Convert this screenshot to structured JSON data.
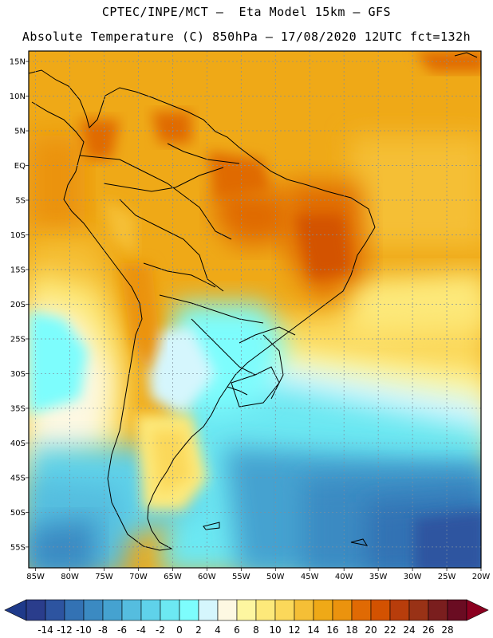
{
  "header": {
    "line1": "CPTEC/INPE/MCT –  Eta Model 15km – GFS",
    "line2": "Absolute Temperature (C) 850hPa – 17/08/2020 12UTC fct=132h"
  },
  "map": {
    "lat_labels": [
      "15N",
      "10N",
      "5N",
      "EQ",
      "5S",
      "10S",
      "15S",
      "20S",
      "25S",
      "30S",
      "35S",
      "40S",
      "45S",
      "50S",
      "55S"
    ],
    "lon_labels": [
      "85W",
      "80W",
      "75W",
      "70W",
      "65W",
      "60W",
      "55W",
      "50W",
      "45W",
      "40W",
      "35W",
      "30W",
      "25W",
      "20W"
    ],
    "lon_range": [
      -86,
      -20
    ],
    "lat_range": [
      -58,
      16.5
    ]
  },
  "colorbar": {
    "labels": [
      "-14",
      "-12",
      "-10",
      "-8",
      "-6",
      "-4",
      "-2",
      "0",
      "2",
      "4",
      "6",
      "8",
      "10",
      "12",
      "14",
      "16",
      "18",
      "20",
      "22",
      "24",
      "26",
      "28"
    ],
    "colors": [
      "#2a3d8c",
      "#2d54a0",
      "#3372b4",
      "#3b8ac2",
      "#45a2d0",
      "#55bddf",
      "#5fd2ea",
      "#6ce8f2",
      "#7dfdfd",
      "#d5f6fd",
      "#fdf8e2",
      "#fdf6a0",
      "#fde97a",
      "#fbd85a",
      "#f5bf36",
      "#efa917",
      "#eb930e",
      "#e06a04",
      "#d35201",
      "#b83d0b",
      "#993216",
      "#7a1e1e",
      "#6a0c22"
    ]
  },
  "colors": {
    "under": "#1f3a8a",
    "over": "#8b0020"
  }
}
